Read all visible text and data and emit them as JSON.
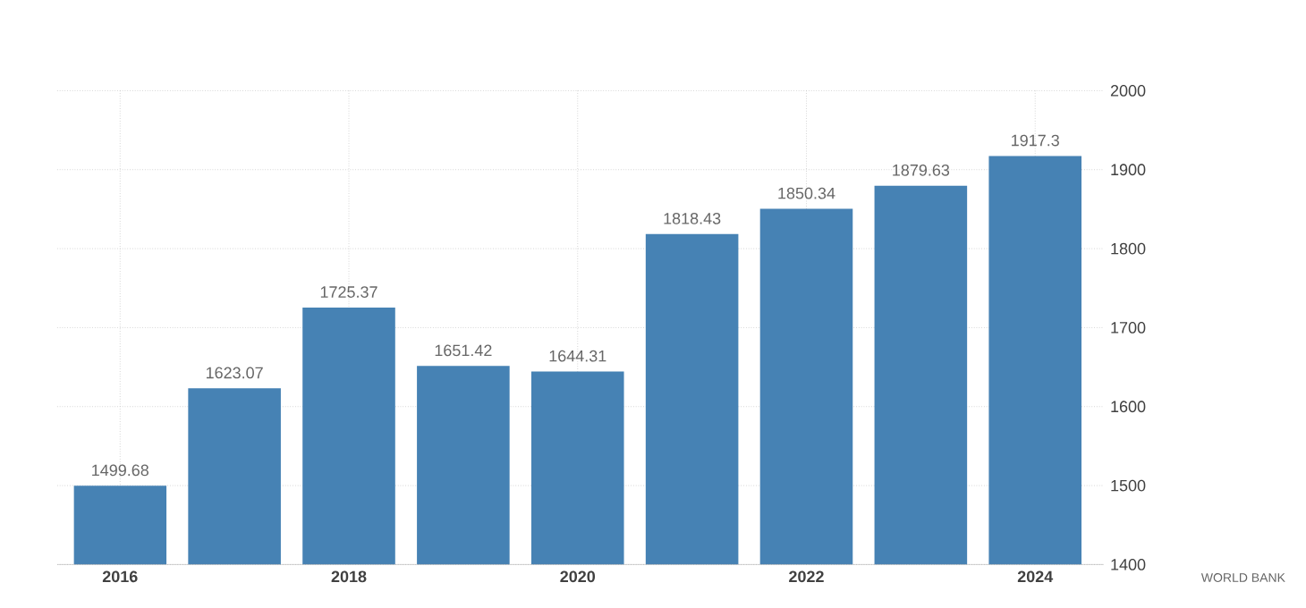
{
  "chart_data": {
    "type": "bar",
    "categories": [
      "2016",
      null,
      "2018",
      null,
      "2020",
      null,
      "2022",
      null,
      "2024"
    ],
    "values": [
      1499.68,
      1623.07,
      1725.37,
      1651.42,
      1644.31,
      1818.43,
      1850.34,
      1879.63,
      1917.3
    ],
    "color": "#4682b4",
    "ylim": [
      1400,
      2000
    ],
    "yticks": [
      1400,
      1500,
      1600,
      1700,
      1800,
      1900,
      2000
    ],
    "grid": true,
    "data_labels": true,
    "annotations": [
      "WORLD BANK"
    ]
  }
}
